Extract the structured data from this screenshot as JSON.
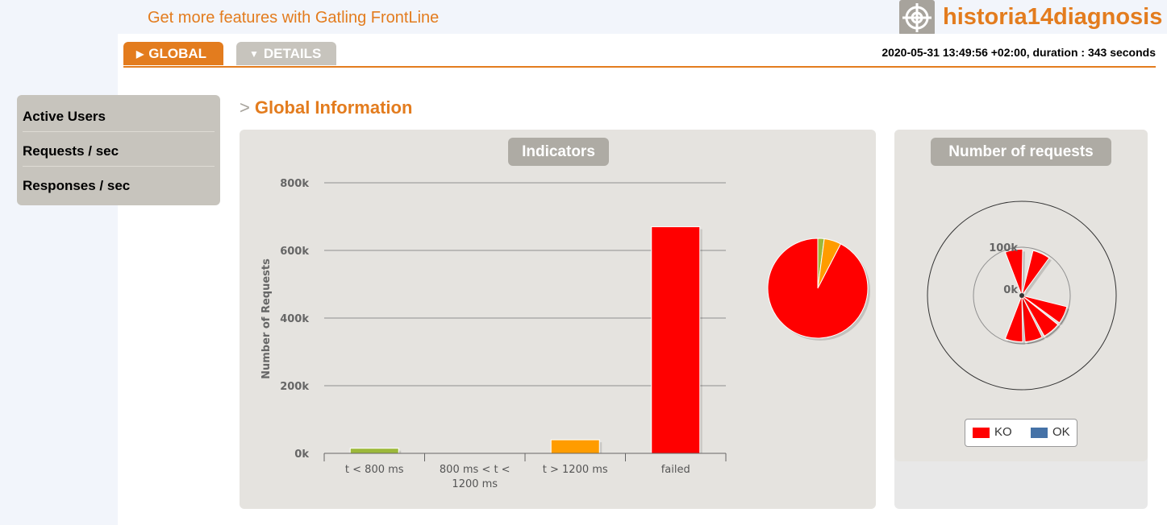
{
  "header": {
    "frontline_link": "Get more features with Gatling FrontLine",
    "brand_name": "historia14diagnosis"
  },
  "tabs": [
    {
      "label": "GLOBAL",
      "active": true
    },
    {
      "label": "DETAILS",
      "active": false
    }
  ],
  "run_info": "2020-05-31 13:49:56 +02:00, duration : 343 seconds",
  "sidebar": {
    "items": [
      {
        "label": "Active Users"
      },
      {
        "label": "Requests / sec"
      },
      {
        "label": "Responses / sec"
      }
    ]
  },
  "main": {
    "section_title": "Global Information"
  },
  "colors": {
    "accent": "#e37c1e",
    "ok_green": "#9cb93a",
    "warn_orange": "#ff9c00",
    "ko_red": "#ff0000",
    "ok_blue": "#4572a7"
  },
  "chart_data": [
    {
      "type": "bar",
      "title": "Indicators",
      "ylabel": "Number of Requests",
      "categories": [
        "t < 800 ms",
        "800 ms < t < 1200 ms",
        "t > 1200 ms",
        "failed"
      ],
      "values": [
        15000,
        0,
        40000,
        670000
      ],
      "colors": [
        "#9cb93a",
        "#ffd700",
        "#ff9c00",
        "#ff0000"
      ],
      "ylim": [
        0,
        800000
      ],
      "yticks": [
        "0k",
        "200k",
        "400k",
        "600k",
        "800k"
      ],
      "grid": true
    },
    {
      "type": "pie",
      "labels": [
        "t < 800 ms",
        "800 ms < t < 1200 ms",
        "t > 1200 ms",
        "failed"
      ],
      "values": [
        15000,
        0,
        40000,
        670000
      ],
      "colors": [
        "#9cb93a",
        "#ffd700",
        "#ff9c00",
        "#ff0000"
      ]
    },
    {
      "type": "bar",
      "subtype": "polar-stacked",
      "title": "Number of requests",
      "axis_ticks": [
        "0k",
        "100k"
      ],
      "series": [
        {
          "name": "KO",
          "color": "#ff0000",
          "values": [
            96000,
            96000,
            96000,
            96000,
            96000,
            96000
          ]
        },
        {
          "name": "OK",
          "color": "#4572a7",
          "values": [
            0,
            0,
            0,
            0,
            0,
            0
          ]
        }
      ],
      "legend": "bottom"
    }
  ]
}
